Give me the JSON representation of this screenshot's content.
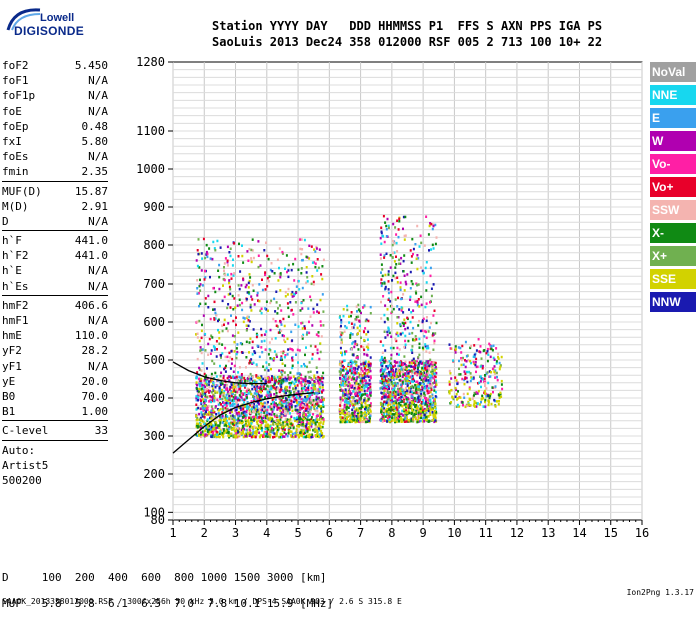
{
  "logo": {
    "line1": "Lowell",
    "line2": "DIGISONDE"
  },
  "header": {
    "labels": "Station YYYY DAY   DDD HHMMSS P1  FFS S AXN PPS IGA PS",
    "values": "SaoLuis 2013 Dec24 358 012000 RSF 005 2 713 100 10+ 22"
  },
  "params": {
    "group1": [
      {
        "name": "foF2",
        "value": "5.450"
      },
      {
        "name": "foF1",
        "value": "N/A"
      },
      {
        "name": "foF1p",
        "value": "N/A"
      },
      {
        "name": "foE",
        "value": "N/A"
      },
      {
        "name": "foEp",
        "value": "0.48"
      },
      {
        "name": "fxI",
        "value": "5.80"
      },
      {
        "name": "foEs",
        "value": "N/A"
      },
      {
        "name": "fmin",
        "value": "2.35"
      }
    ],
    "group2": [
      {
        "name": "MUF(D)",
        "value": "15.87"
      },
      {
        "name": "M(D)",
        "value": "2.91"
      },
      {
        "name": "D",
        "value": "N/A"
      }
    ],
    "group3": [
      {
        "name": "h`F",
        "value": "441.0"
      },
      {
        "name": "h`F2",
        "value": "441.0"
      },
      {
        "name": "h`E",
        "value": "N/A"
      },
      {
        "name": "h`Es",
        "value": "N/A"
      }
    ],
    "group4": [
      {
        "name": "hmF2",
        "value": "406.6"
      },
      {
        "name": "hmF1",
        "value": "N/A"
      },
      {
        "name": "hmE",
        "value": "110.0"
      },
      {
        "name": "yF2",
        "value": "28.2"
      },
      {
        "name": "yF1",
        "value": "N/A"
      },
      {
        "name": "yE",
        "value": "20.0"
      },
      {
        "name": "B0",
        "value": "70.0"
      },
      {
        "name": "B1",
        "value": "1.00"
      }
    ],
    "group5": [
      {
        "name": "C-level",
        "value": "33"
      }
    ],
    "auto": [
      "Auto:",
      "Artist5",
      "500200"
    ]
  },
  "legend": [
    {
      "label": "NoVal",
      "color": "#a0a0a0"
    },
    {
      "label": "NNE",
      "color": "#17d7ef"
    },
    {
      "label": "E",
      "color": "#3aa0ee"
    },
    {
      "label": "W",
      "color": "#b000b0"
    },
    {
      "label": "Vo-",
      "color": "#ff1fa5"
    },
    {
      "label": "Vo+",
      "color": "#e8002a"
    },
    {
      "label": "SSW",
      "color": "#f4b4b0"
    },
    {
      "label": "X-",
      "color": "#108a14"
    },
    {
      "label": "X+",
      "color": "#70b050"
    },
    {
      "label": "SSE",
      "color": "#d2d200"
    },
    {
      "label": "NNW",
      "color": "#1a1ab0"
    }
  ],
  "chart_data": {
    "type": "scatter",
    "title": "",
    "xlabel": "",
    "ylabel": "",
    "xlim": [
      1,
      16
    ],
    "ylim": [
      80,
      1280
    ],
    "y_scale": "reciprocal",
    "x_ticks": [
      "1",
      "2",
      "3",
      "4",
      "5",
      "6",
      "7",
      "8",
      "9",
      "10",
      "11",
      "12",
      "13",
      "14",
      "15",
      "16"
    ],
    "y_ticks": [
      "80",
      "100",
      "200",
      "300",
      "400",
      "500",
      "600",
      "700",
      "800",
      "900",
      "1000",
      "1100",
      "1280"
    ],
    "grid": true,
    "clusters": [
      {
        "x_range": [
          1.7,
          5.8
        ],
        "y_range": [
          300,
          820
        ],
        "color_mix": "multi"
      },
      {
        "x_range": [
          6.3,
          7.3
        ],
        "y_range": [
          340,
          650
        ],
        "color_mix": "multi"
      },
      {
        "x_range": [
          7.6,
          9.4
        ],
        "y_range": [
          340,
          880
        ],
        "color_mix": "multi"
      },
      {
        "x_range": [
          9.8,
          11.5
        ],
        "y_range": [
          380,
          560
        ],
        "color_mix": "multi"
      }
    ],
    "curves": [
      {
        "name": "o-trace",
        "color": "#000000",
        "points": [
          [
            1.0,
            255
          ],
          [
            1.5,
            290
          ],
          [
            2.0,
            325
          ],
          [
            2.5,
            355
          ],
          [
            3.0,
            375
          ],
          [
            3.5,
            388
          ],
          [
            4.0,
            398
          ],
          [
            4.5,
            405
          ],
          [
            5.0,
            410
          ],
          [
            5.5,
            414
          ]
        ]
      },
      {
        "name": "o-trace-upper",
        "color": "#000000",
        "points": [
          [
            1.0,
            495
          ],
          [
            1.5,
            472
          ],
          [
            2.0,
            456
          ],
          [
            2.5,
            446
          ],
          [
            3.0,
            440
          ],
          [
            3.5,
            438
          ],
          [
            4.0,
            438
          ]
        ]
      }
    ]
  },
  "bottom_table": {
    "d_row": "D     100  200  400  600  800 1000 1500 3000 [km]",
    "muf_row": "MUF   5.8  5.8  6.1  6.5  7.0  7.8 10.1 15.9 [MHz]"
  },
  "footer": {
    "left": "SAA0K_2013358012000.RSF / 300fx256h 50 kHz 5.0 km / DPS-4 SAA0K 903 / 2.6 S 315.8 E",
    "right": "Ion2Png 1.3.17"
  }
}
